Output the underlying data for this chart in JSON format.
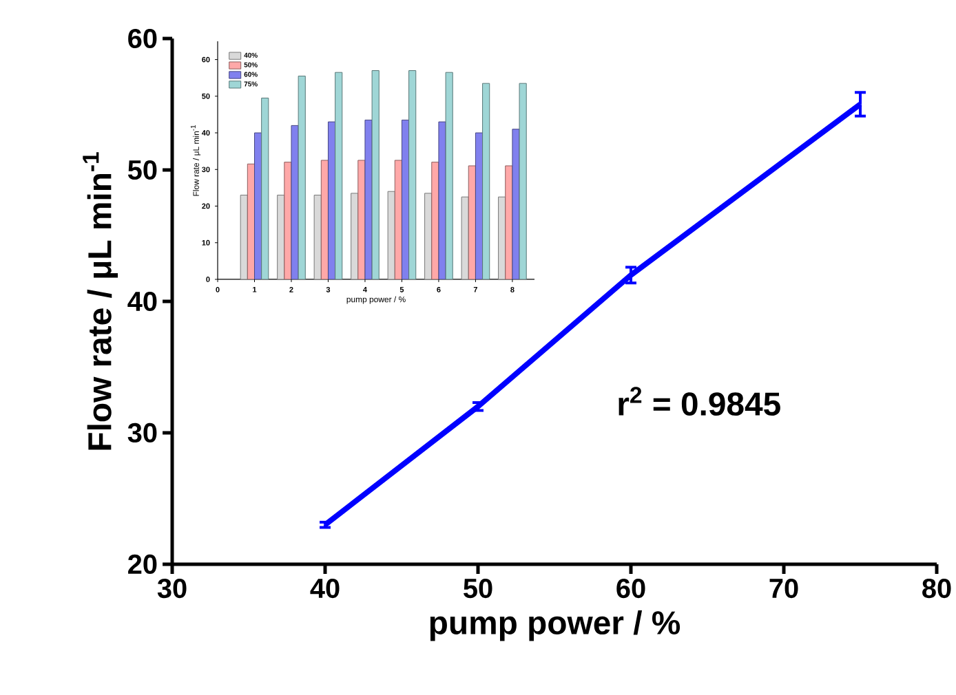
{
  "chart_data": [
    {
      "type": "line",
      "x": [
        40,
        50,
        60,
        75
      ],
      "values": [
        23,
        32,
        42,
        55
      ],
      "errors": [
        0.2,
        0.3,
        0.6,
        0.9
      ],
      "color": "#0000ff",
      "xlim": [
        30,
        80
      ],
      "xticks": [
        30,
        40,
        50,
        60,
        70,
        80
      ],
      "ylim": [
        20,
        60
      ],
      "yticks": [
        20,
        30,
        40,
        50,
        60
      ],
      "xlabel": "pump power / %",
      "ylabel": "Flow rate / μL min$^{-1}$",
      "annotations": [
        "r$^{2}$ = 0.9845"
      ],
      "grid": false
    },
    {
      "type": "bar",
      "x": [
        1,
        2,
        3,
        4,
        5,
        6,
        7,
        8
      ],
      "xlim": [
        0,
        8.6
      ],
      "xticks": [
        0,
        1,
        2,
        3,
        4,
        5,
        6,
        7,
        8
      ],
      "ylim": [
        0,
        65
      ],
      "yticks": [
        0,
        10,
        20,
        30,
        40,
        50,
        60
      ],
      "xlabel": "pump power / %",
      "ylabel": "Flow rate / μL min$^{-1}$",
      "legend": "top left",
      "grid": false,
      "series": [
        {
          "name": "40%",
          "color": "#d9d9d9",
          "values": [
            23,
            23,
            23,
            23.5,
            24,
            23.5,
            22.5,
            22.5
          ]
        },
        {
          "name": "50%",
          "color": "#ffa8a8",
          "values": [
            31.5,
            32,
            32.5,
            32.5,
            32.5,
            32,
            31,
            31
          ]
        },
        {
          "name": "60%",
          "color": "#8080ee",
          "values": [
            40,
            42,
            43,
            43.5,
            43.5,
            43,
            40,
            41
          ]
        },
        {
          "name": "75%",
          "color": "#9fd6d6",
          "values": [
            49.5,
            55.5,
            56.5,
            57,
            57,
            56.5,
            53.5,
            53.5
          ]
        }
      ]
    }
  ]
}
